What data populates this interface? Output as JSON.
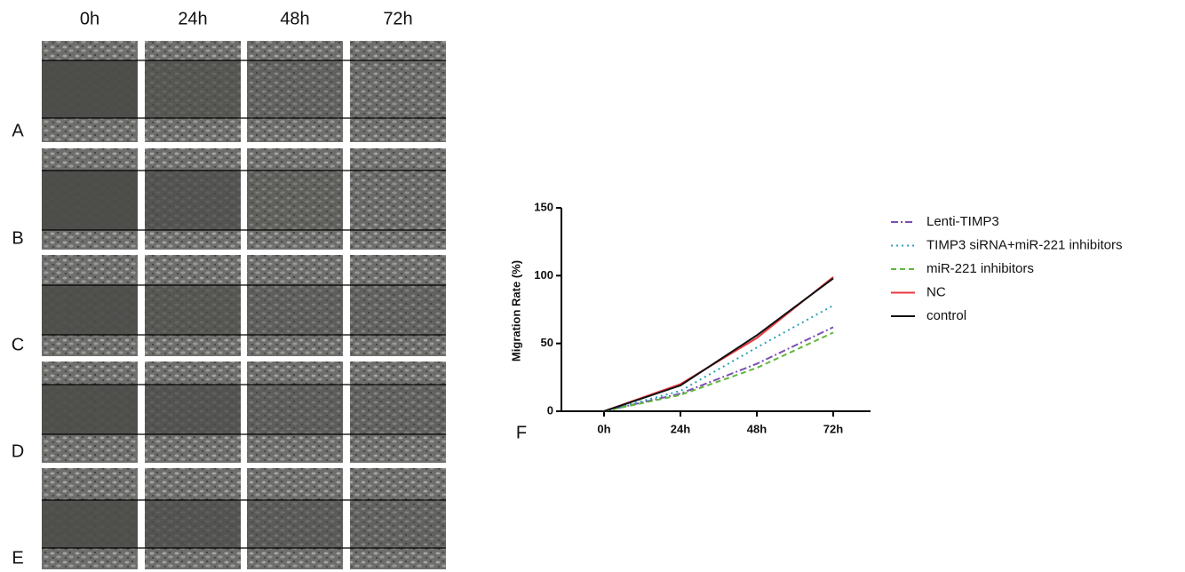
{
  "panels": {
    "columns": [
      "0h",
      "24h",
      "48h",
      "72h"
    ],
    "rows": [
      "A",
      "B",
      "C",
      "D",
      "E"
    ]
  },
  "chart_data": {
    "type": "line",
    "panel_label": "F",
    "y_label": "Migration  Rate (%)",
    "categories": [
      "0h",
      "24h",
      "48h",
      "72h"
    ],
    "ylim": [
      0,
      150
    ],
    "yticks": [
      0,
      50,
      100,
      150
    ],
    "series": [
      {
        "name": "Lenti-TIMP3",
        "color": "#7b4fb5",
        "style": "dashdot",
        "values": [
          0,
          13,
          35,
          62
        ]
      },
      {
        "name": "TIMP3 siRNA+miR-221 inhibitors",
        "color": "#2aa0b8",
        "style": "dotted",
        "values": [
          0,
          15,
          47,
          78
        ]
      },
      {
        "name": "miR-221 inhibitors",
        "color": "#5fb83a",
        "style": "dashed",
        "values": [
          0,
          12,
          32,
          58
        ]
      },
      {
        "name": "NC",
        "color": "#e8383d",
        "style": "solid",
        "values": [
          0,
          20,
          54,
          99
        ]
      },
      {
        "name": "control",
        "color": "#111111",
        "style": "solid",
        "values": [
          0,
          19,
          56,
          98
        ]
      }
    ]
  }
}
